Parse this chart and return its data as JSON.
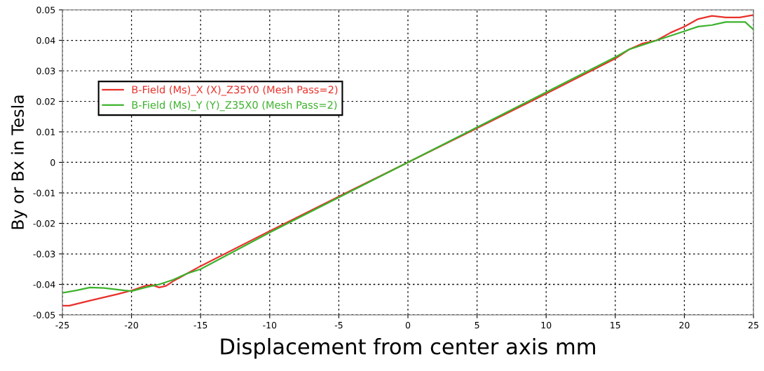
{
  "chart_data": {
    "type": "line",
    "xlabel": "Displacement from center axis mm",
    "ylabel": "By or Bx in Tesla",
    "xlim": [
      -25,
      25
    ],
    "xticks": [
      -25,
      -20,
      -15,
      -10,
      -5,
      0,
      5,
      10,
      15,
      20,
      25
    ],
    "ylim": [
      -0.05,
      0.05
    ],
    "yticks": [
      -0.05,
      -0.04,
      -0.03,
      -0.02,
      -0.01,
      0,
      0.01,
      0.02,
      0.03,
      0.04,
      0.05
    ],
    "grid": true,
    "legend": "center left",
    "line_style": "solid",
    "series": [
      {
        "name": "B-Field (Ms)_X (X)_Z35Y0 (Mesh Pass=2)",
        "color": "#e8302a",
        "x": [
          -25,
          -24.5,
          -23,
          -21,
          -20,
          -19,
          -18.5,
          -18,
          -17.5,
          -17,
          -16,
          -15,
          -10,
          -5,
          0,
          5,
          10,
          15,
          16,
          17,
          18,
          19,
          20,
          21,
          22,
          23,
          24,
          25
        ],
        "values": [
          -0.047,
          -0.047,
          -0.0453,
          -0.0432,
          -0.042,
          -0.0405,
          -0.0402,
          -0.041,
          -0.0405,
          -0.039,
          -0.0365,
          -0.034,
          -0.0225,
          -0.0112,
          0,
          0.0112,
          0.0225,
          0.034,
          0.037,
          0.039,
          0.04,
          0.0425,
          0.0445,
          0.047,
          0.048,
          0.0475,
          0.0475,
          0.0483
        ]
      },
      {
        "name": "B-Field (Ms)_Y (Y)_Z35X0 (Mesh Pass=2)",
        "color": "#3cb22c",
        "x": [
          -25,
          -24,
          -23,
          -22,
          -20.5,
          -20,
          -19,
          -18,
          -17,
          -16,
          -15,
          -10,
          -5,
          0,
          5,
          10,
          15,
          16,
          17,
          18,
          19,
          20,
          21,
          22,
          23,
          24.4,
          25
        ],
        "values": [
          -0.0428,
          -0.042,
          -0.041,
          -0.0412,
          -0.042,
          -0.0422,
          -0.041,
          -0.04,
          -0.0385,
          -0.0365,
          -0.035,
          -0.023,
          -0.0115,
          0,
          0.0115,
          0.023,
          0.0345,
          0.037,
          0.0385,
          0.04,
          0.0415,
          0.043,
          0.0445,
          0.045,
          0.046,
          0.046,
          0.0435
        ]
      }
    ]
  }
}
